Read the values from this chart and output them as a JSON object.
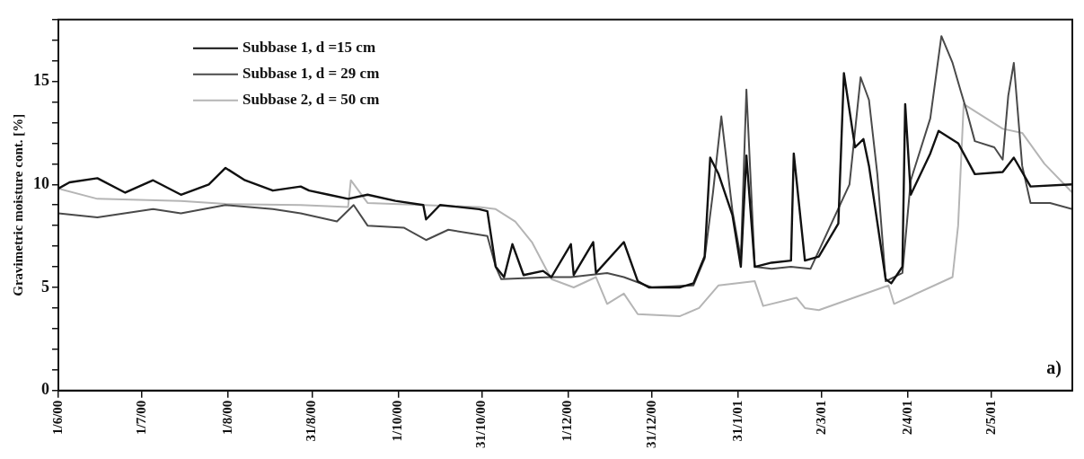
{
  "chart_data": {
    "type": "line",
    "ylabel": "Gravimetric moisture cont. [%]",
    "xlim": [
      "2000-06-01",
      "2001-05-31"
    ],
    "xticks": [
      {
        "value": "2000-06-01",
        "label": "1/6/00"
      },
      {
        "value": "2000-07-01",
        "label": "1/7/00"
      },
      {
        "value": "2000-08-01",
        "label": "1/8/00"
      },
      {
        "value": "2000-08-31",
        "label": "31/8/00"
      },
      {
        "value": "2000-10-01",
        "label": "1/10/00"
      },
      {
        "value": "2000-10-31",
        "label": "31/10/00"
      },
      {
        "value": "2000-12-01",
        "label": "1/12/00"
      },
      {
        "value": "2000-12-31",
        "label": "31/12/00"
      },
      {
        "value": "2001-01-31",
        "label": "31/1/01"
      },
      {
        "value": "2001-03-02",
        "label": "2/3/01"
      },
      {
        "value": "2001-04-02",
        "label": "2/4/01"
      },
      {
        "value": "2001-05-02",
        "label": "2/5/01"
      }
    ],
    "ylim": [
      0,
      18
    ],
    "yticks": [
      0,
      {
        "value": 1,
        "label": null
      },
      {
        "value": 2,
        "label": null
      },
      {
        "value": 3,
        "label": null
      },
      {
        "value": 4,
        "label": null
      },
      5,
      {
        "value": 6,
        "label": null
      },
      {
        "value": 7,
        "label": null
      },
      {
        "value": 8,
        "label": null
      },
      {
        "value": 9,
        "label": null
      },
      10,
      {
        "value": 11,
        "label": null
      },
      {
        "value": 12,
        "label": null
      },
      {
        "value": 13,
        "label": null
      },
      {
        "value": 14,
        "label": null
      },
      15,
      {
        "value": 16,
        "label": null
      },
      {
        "value": 17,
        "label": null
      },
      {
        "value": 18,
        "label": null
      }
    ],
    "grid": false,
    "legend": "top left",
    "marker": "none",
    "line_style": "solid",
    "annotations": [
      "a)"
    ],
    "series": [
      {
        "name": "Subbase 1, d =15 cm",
        "color": "#111111",
        "x": [
          "2000-06-01",
          "2000-06-05",
          "2000-06-15",
          "2000-06-25",
          "2000-07-05",
          "2000-07-15",
          "2000-07-25",
          "2000-07-31",
          "2000-08-07",
          "2000-08-17",
          "2000-08-27",
          "2000-08-30",
          "2000-09-06",
          "2000-09-13",
          "2000-09-20",
          "2000-09-30",
          "2000-10-10",
          "2000-10-11",
          "2000-10-16",
          "2000-10-30",
          "2000-11-02",
          "2000-11-05",
          "2000-11-08",
          "2000-11-11",
          "2000-11-15",
          "2000-11-22",
          "2000-11-25",
          "2000-12-02",
          "2000-12-03",
          "2000-12-10",
          "2000-12-11",
          "2000-12-21",
          "2000-12-26",
          "2000-12-30",
          "2001-01-10",
          "2001-01-15",
          "2001-01-19",
          "2001-01-21",
          "2001-01-24",
          "2001-01-29",
          "2001-02-01",
          "2001-02-03",
          "2001-02-06",
          "2001-02-12",
          "2001-02-19",
          "2001-02-20",
          "2001-02-24",
          "2001-03-01",
          "2001-03-08",
          "2001-03-10",
          "2001-03-14",
          "2001-03-17",
          "2001-03-19",
          "2001-03-25",
          "2001-03-27",
          "2001-03-31",
          "2001-04-01",
          "2001-04-03",
          "2001-04-10",
          "2001-04-13",
          "2001-04-20",
          "2001-04-26",
          "2001-05-06",
          "2001-05-10",
          "2001-05-16",
          "2001-05-31"
        ],
        "values": [
          9.8,
          10.1,
          10.3,
          9.6,
          10.2,
          9.5,
          10.0,
          10.8,
          10.2,
          9.7,
          9.9,
          9.7,
          9.5,
          9.3,
          9.5,
          9.2,
          9.0,
          8.3,
          9.0,
          8.8,
          8.7,
          6.0,
          5.5,
          7.1,
          5.6,
          5.8,
          5.5,
          7.1,
          5.6,
          7.2,
          5.7,
          7.2,
          5.3,
          5.0,
          5.0,
          5.2,
          6.5,
          11.3,
          10.5,
          8.5,
          6.0,
          11.4,
          6.0,
          6.2,
          6.3,
          11.5,
          6.3,
          6.5,
          8.1,
          15.4,
          11.8,
          12.2,
          10.9,
          5.4,
          5.2,
          6.0,
          13.9,
          9.5,
          11.5,
          12.6,
          12.0,
          10.5,
          10.6,
          11.3,
          9.9,
          10.0
        ]
      },
      {
        "name": "Subbase 1, d = 29 cm",
        "color": "#4a4a4a",
        "x": [
          "2000-06-01",
          "2000-06-15",
          "2000-07-05",
          "2000-07-15",
          "2000-07-31",
          "2000-08-17",
          "2000-08-27",
          "2000-09-09",
          "2000-09-15",
          "2000-09-20",
          "2000-10-03",
          "2000-10-11",
          "2000-10-19",
          "2000-11-02",
          "2000-11-05",
          "2000-11-07",
          "2000-11-25",
          "2000-12-02",
          "2000-12-15",
          "2000-12-21",
          "2000-12-31",
          "2001-01-15",
          "2001-01-19",
          "2001-01-22",
          "2001-01-25",
          "2001-01-29",
          "2001-02-01",
          "2001-02-03",
          "2001-02-06",
          "2001-02-12",
          "2001-02-19",
          "2001-02-26",
          "2001-03-12",
          "2001-03-16",
          "2001-03-19",
          "2001-03-22",
          "2001-03-25",
          "2001-03-31",
          "2001-04-03",
          "2001-04-10",
          "2001-04-14",
          "2001-04-18",
          "2001-04-21",
          "2001-04-23",
          "2001-04-26",
          "2001-05-03",
          "2001-05-06",
          "2001-05-08",
          "2001-05-10",
          "2001-05-13",
          "2001-05-16",
          "2001-05-23",
          "2001-05-31"
        ],
        "values": [
          8.6,
          8.4,
          8.8,
          8.6,
          9.0,
          8.8,
          8.6,
          8.2,
          9.0,
          8.0,
          7.9,
          7.3,
          7.8,
          7.5,
          6.0,
          5.4,
          5.5,
          5.5,
          5.7,
          5.5,
          5.0,
          5.1,
          6.4,
          9.6,
          13.3,
          8.7,
          6.4,
          14.6,
          6.0,
          5.9,
          6.0,
          5.9,
          10.0,
          15.2,
          14.1,
          10.5,
          5.3,
          5.7,
          10.2,
          13.2,
          17.2,
          15.9,
          14.5,
          13.6,
          12.1,
          11.8,
          11.2,
          14.3,
          15.9,
          10.9,
          9.1,
          9.1,
          8.8
        ]
      },
      {
        "name": "Subbase 2, d = 50 cm",
        "color": "#b5b5b5",
        "x": [
          "2000-06-01",
          "2000-06-15",
          "2000-07-15",
          "2000-07-31",
          "2000-08-27",
          "2000-09-13",
          "2000-09-14",
          "2000-09-20",
          "2000-10-10",
          "2000-10-30",
          "2000-11-05",
          "2000-11-12",
          "2000-11-18",
          "2000-11-25",
          "2000-12-03",
          "2000-12-11",
          "2000-12-15",
          "2000-12-21",
          "2000-12-26",
          "2001-01-10",
          "2001-01-17",
          "2001-01-24",
          "2001-02-06",
          "2001-02-09",
          "2001-02-21",
          "2001-02-24",
          "2001-03-01",
          "2001-03-26",
          "2001-03-28",
          "2001-04-18",
          "2001-04-20",
          "2001-04-22",
          "2001-05-06",
          "2001-05-13",
          "2001-05-21",
          "2001-05-31"
        ],
        "values": [
          9.8,
          9.3,
          9.2,
          9.05,
          9.0,
          8.9,
          10.2,
          9.1,
          9.0,
          8.9,
          8.8,
          8.2,
          7.2,
          5.4,
          5.0,
          5.5,
          4.2,
          4.7,
          3.7,
          3.6,
          4.0,
          5.1,
          5.3,
          4.1,
          4.5,
          4.0,
          3.9,
          5.1,
          4.2,
          5.5,
          8.0,
          13.9,
          12.7,
          12.5,
          11.0,
          9.6
        ]
      }
    ]
  }
}
